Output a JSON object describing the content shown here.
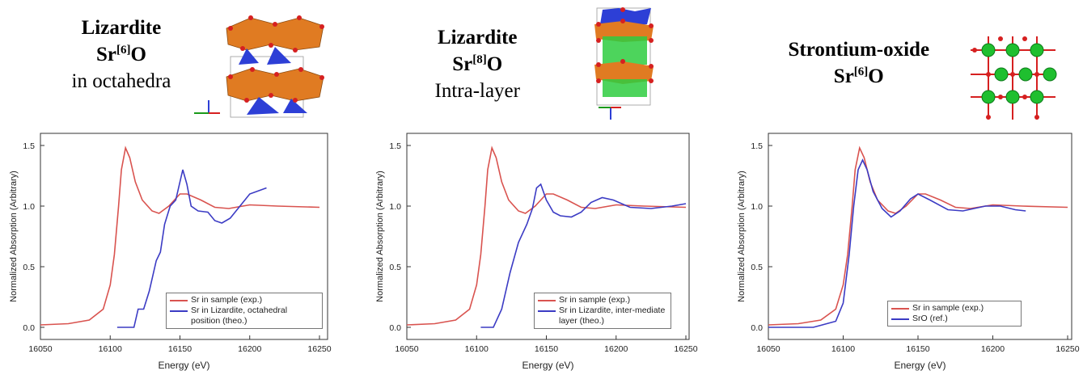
{
  "chart_data": [
    {
      "type": "line",
      "title": [
        "Lizardite",
        [
          "Sr",
          "[6]",
          "O"
        ],
        "in octahedra"
      ],
      "x_label": "Energy (eV)",
      "y_label": "Normalized Absorption (Arbitrary)",
      "xlim": [
        16050,
        16250
      ],
      "xticks": [
        16050,
        16100,
        16150,
        16200,
        16250
      ],
      "ylim": [
        -0.1,
        1.6
      ],
      "yticks": [
        {
          "value": 0,
          "label": "0.0"
        },
        {
          "value": 0.5,
          "label": "0.5"
        },
        {
          "value": 1,
          "label": "1.0"
        },
        {
          "value": 1.5,
          "label": "1.5"
        }
      ],
      "series": [
        {
          "name": "Sr in sample (exp.)",
          "color": "#d9534f",
          "x": [
            16050,
            16070,
            16085,
            16095,
            16100,
            16103,
            16106,
            16108,
            16111,
            16114,
            16118,
            16123,
            16130,
            16135,
            16142,
            16150,
            16155,
            16165,
            16175,
            16185,
            16200,
            16220,
            16250
          ],
          "values": [
            0.02,
            0.03,
            0.06,
            0.15,
            0.35,
            0.6,
            1.0,
            1.3,
            1.48,
            1.4,
            1.2,
            1.05,
            0.96,
            0.94,
            1.0,
            1.1,
            1.1,
            1.05,
            0.99,
            0.98,
            1.01,
            1.0,
            0.99
          ]
        },
        {
          "name": "Sr in Lizardite, octahedral position (theo.)",
          "color": "#3b3bc4",
          "x": [
            16105,
            16117,
            16120,
            16124,
            16128,
            16133,
            16136,
            16139,
            16143,
            16147,
            16150,
            16152,
            16155,
            16158,
            16163,
            16170,
            16175,
            16180,
            16186,
            16193,
            16200,
            16212
          ],
          "values": [
            0.0,
            0.0,
            0.15,
            0.15,
            0.3,
            0.55,
            0.62,
            0.85,
            1.0,
            1.05,
            1.2,
            1.3,
            1.18,
            1.0,
            0.96,
            0.95,
            0.88,
            0.86,
            0.9,
            1.0,
            1.1,
            1.15
          ]
        }
      ]
    },
    {
      "type": "line",
      "title": [
        "Lizardite",
        [
          "Sr",
          "[8]",
          "O"
        ],
        "Intra-layer"
      ],
      "x_label": "Energy (eV)",
      "y_label": "Normalized Absorption (Arbitrary)",
      "xlim": [
        16050,
        16250
      ],
      "xticks": [
        16050,
        16100,
        16150,
        16200,
        16250
      ],
      "ylim": [
        -0.1,
        1.6
      ],
      "yticks": [
        {
          "value": 0,
          "label": "0.0"
        },
        {
          "value": 0.5,
          "label": "0.5"
        },
        {
          "value": 1,
          "label": "1.0"
        },
        {
          "value": 1.5,
          "label": "1.5"
        }
      ],
      "series": [
        {
          "name": "Sr in sample (exp.)",
          "color": "#d9534f",
          "x": [
            16050,
            16070,
            16085,
            16095,
            16100,
            16103,
            16106,
            16108,
            16111,
            16114,
            16118,
            16123,
            16130,
            16135,
            16142,
            16150,
            16155,
            16165,
            16175,
            16185,
            16200,
            16220,
            16250
          ],
          "values": [
            0.02,
            0.03,
            0.06,
            0.15,
            0.35,
            0.6,
            1.0,
            1.3,
            1.48,
            1.4,
            1.2,
            1.05,
            0.96,
            0.94,
            1.0,
            1.1,
            1.1,
            1.05,
            0.99,
            0.98,
            1.01,
            1.0,
            0.99
          ]
        },
        {
          "name": "Sr in Lizardite, inter-mediate layer (theo.)",
          "color": "#3b3bc4",
          "x": [
            16103,
            16112,
            16118,
            16124,
            16130,
            16136,
            16140,
            16143,
            16146,
            16150,
            16155,
            16160,
            16168,
            16175,
            16182,
            16190,
            16198,
            16210,
            16225,
            16240,
            16250
          ],
          "values": [
            0.0,
            0.0,
            0.15,
            0.45,
            0.7,
            0.85,
            0.98,
            1.15,
            1.18,
            1.05,
            0.95,
            0.92,
            0.91,
            0.95,
            1.03,
            1.07,
            1.05,
            0.99,
            0.98,
            1.0,
            1.02
          ]
        }
      ]
    },
    {
      "type": "line",
      "title": [
        "Strontium-oxide",
        [
          "Sr",
          "[6]",
          "O"
        ]
      ],
      "x_label": "Energy (eV)",
      "y_label": "Normalized Absorption (Arbitrary)",
      "xlim": [
        16050,
        16250
      ],
      "xticks": [
        16050,
        16100,
        16150,
        16200,
        16250
      ],
      "ylim": [
        -0.1,
        1.6
      ],
      "yticks": [
        {
          "value": 0,
          "label": "0.0"
        },
        {
          "value": 0.5,
          "label": "0.5"
        },
        {
          "value": 1,
          "label": "1.0"
        },
        {
          "value": 1.5,
          "label": "1.5"
        }
      ],
      "series": [
        {
          "name": "Sr in sample (exp.)",
          "color": "#d9534f",
          "x": [
            16050,
            16070,
            16085,
            16095,
            16100,
            16103,
            16106,
            16108,
            16111,
            16114,
            16118,
            16123,
            16130,
            16135,
            16142,
            16150,
            16155,
            16165,
            16175,
            16185,
            16200,
            16220,
            16250
          ],
          "values": [
            0.02,
            0.03,
            0.06,
            0.15,
            0.35,
            0.6,
            1.0,
            1.3,
            1.48,
            1.4,
            1.2,
            1.05,
            0.96,
            0.94,
            1.0,
            1.1,
            1.1,
            1.05,
            0.99,
            0.98,
            1.01,
            1.0,
            0.99
          ]
        },
        {
          "name": "SrO (ref.)",
          "color": "#3b3bc4",
          "x": [
            16050,
            16080,
            16095,
            16100,
            16104,
            16107,
            16110,
            16113,
            16116,
            16120,
            16126,
            16132,
            16138,
            16145,
            16150,
            16158,
            16170,
            16180,
            16195,
            16205,
            16215,
            16222
          ],
          "values": [
            0.0,
            0.0,
            0.05,
            0.2,
            0.6,
            1.0,
            1.3,
            1.38,
            1.3,
            1.12,
            0.98,
            0.91,
            0.96,
            1.06,
            1.1,
            1.05,
            0.97,
            0.96,
            1.0,
            1.0,
            0.97,
            0.96
          ]
        }
      ]
    }
  ]
}
